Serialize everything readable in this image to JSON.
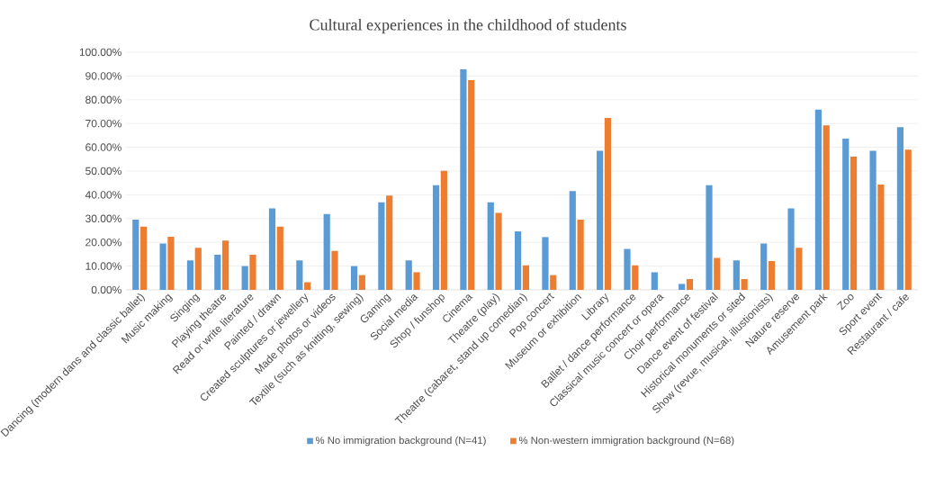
{
  "chart_data": {
    "type": "bar",
    "title": "Cultural experiences in the childhood of students",
    "categories": [
      "Dancing (modern dans and classic ballet)",
      "Music making",
      "Singing",
      "Playing theatre",
      "Read or write literature",
      "Painted / drawn",
      "Created sculptures or jewellery",
      "Made photos or videos",
      "Textile (such as knitting, sewing)",
      "Gaming",
      "Social media",
      "Shop / funshop",
      "Cinema",
      "Theatre (play)",
      "Theatre (cabaret, stand up comedian)",
      "Pop concert",
      "Museum or exhibition",
      "Library",
      "Ballet / dance performance",
      "Classical music concert or opera",
      "Choir performance",
      "Dance event of festival",
      "Historical monuments or sited",
      "Show (revue, musical, illustionists)",
      "Nature reserve",
      "Amusement park",
      "Zoo",
      "Sport event",
      "Restaurant / cafe"
    ],
    "series": [
      {
        "name": "% No immigration background (N=41)",
        "color": "#5b9bd5",
        "values": [
          29.5,
          19.5,
          12.4,
          14.8,
          10.0,
          34.3,
          12.4,
          31.9,
          10.0,
          36.8,
          12.4,
          44.0,
          92.8,
          36.8,
          24.6,
          22.2,
          41.6,
          58.5,
          17.2,
          7.4,
          2.5,
          44.0,
          12.4,
          19.5,
          34.3,
          75.8,
          63.6,
          58.5,
          68.5
        ]
      },
      {
        "name": "% Non-western immigration background (N=68)",
        "color": "#ed7d31",
        "values": [
          26.6,
          22.3,
          17.7,
          20.7,
          14.8,
          26.6,
          3.2,
          16.4,
          6.2,
          39.7,
          7.4,
          50.1,
          88.3,
          32.4,
          10.3,
          6.2,
          29.5,
          72.3,
          10.3,
          0,
          4.5,
          13.4,
          4.5,
          12.1,
          17.7,
          69.2,
          56.1,
          44.3,
          59.0
        ]
      }
    ],
    "ylim": [
      0,
      100
    ],
    "yticks": [
      {
        "value": 0,
        "label": "0.00%"
      },
      {
        "value": 10,
        "label": "10.00%"
      },
      {
        "value": 20,
        "label": "20.00%"
      },
      {
        "value": 30,
        "label": "30.00%"
      },
      {
        "value": 40,
        "label": "40.00%"
      },
      {
        "value": 50,
        "label": "50.00%"
      },
      {
        "value": 60,
        "label": "60.00%"
      },
      {
        "value": 70,
        "label": "70.00%"
      },
      {
        "value": 80,
        "label": "80.00%"
      },
      {
        "value": 90,
        "label": "90.00%"
      },
      {
        "value": 100,
        "label": "100.00%"
      }
    ],
    "grid": "y",
    "legend": "bottom"
  }
}
